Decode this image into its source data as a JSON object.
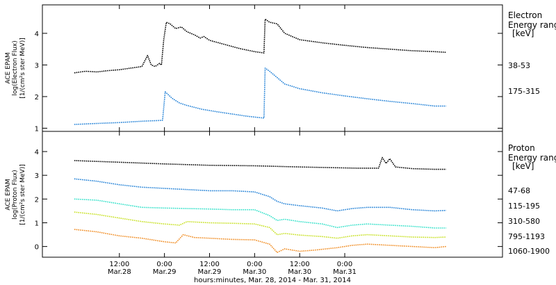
{
  "chart_data": [
    {
      "type": "line",
      "panel": "electron",
      "ylabel_lines": [
        "ACE EPAM",
        "log(Electron Flux)",
        "[1/(cm²s ster MeV)]"
      ],
      "ylim": [
        0.9,
        4.9
      ],
      "yticks": [
        1,
        2,
        3,
        4
      ],
      "legend_title_lines": [
        "Electron",
        "Energy ranges",
        "[keV]"
      ],
      "series": [
        {
          "name": "38-53",
          "color": "#000000",
          "points": [
            [
              0,
              2.75
            ],
            [
              3,
              2.8
            ],
            [
              6,
              2.78
            ],
            [
              9,
              2.82
            ],
            [
              12,
              2.85
            ],
            [
              15,
              2.9
            ],
            [
              18,
              2.95
            ],
            [
              19.5,
              3.3
            ],
            [
              20.5,
              3.0
            ],
            [
              21.5,
              2.95
            ],
            [
              22.7,
              3.05
            ],
            [
              23.2,
              3.0
            ],
            [
              23.8,
              3.8
            ],
            [
              24.5,
              4.35
            ],
            [
              25.5,
              4.3
            ],
            [
              27,
              4.15
            ],
            [
              28.5,
              4.2
            ],
            [
              30,
              4.05
            ],
            [
              31,
              4.0
            ],
            [
              32,
              3.95
            ],
            [
              33.5,
              3.85
            ],
            [
              34.5,
              3.9
            ],
            [
              36,
              3.78
            ],
            [
              40,
              3.65
            ],
            [
              44,
              3.52
            ],
            [
              48,
              3.42
            ],
            [
              50.5,
              3.38
            ],
            [
              50.8,
              4.45
            ],
            [
              52,
              4.35
            ],
            [
              54,
              4.3
            ],
            [
              56,
              4.0
            ],
            [
              60,
              3.8
            ],
            [
              66,
              3.7
            ],
            [
              72,
              3.62
            ],
            [
              78,
              3.55
            ],
            [
              84,
              3.5
            ],
            [
              90,
              3.45
            ],
            [
              96,
              3.42
            ],
            [
              99,
              3.4
            ]
          ]
        },
        {
          "name": "175-315",
          "color": "#1e7fd6",
          "points": [
            [
              0,
              1.12
            ],
            [
              6,
              1.15
            ],
            [
              12,
              1.18
            ],
            [
              18,
              1.22
            ],
            [
              23.5,
              1.25
            ],
            [
              24.2,
              2.15
            ],
            [
              26,
              1.95
            ],
            [
              28,
              1.8
            ],
            [
              30,
              1.72
            ],
            [
              34,
              1.6
            ],
            [
              38,
              1.52
            ],
            [
              42,
              1.45
            ],
            [
              46,
              1.38
            ],
            [
              50.5,
              1.32
            ],
            [
              50.8,
              2.9
            ],
            [
              52,
              2.8
            ],
            [
              54,
              2.6
            ],
            [
              56,
              2.4
            ],
            [
              60,
              2.25
            ],
            [
              66,
              2.12
            ],
            [
              72,
              2.02
            ],
            [
              78,
              1.93
            ],
            [
              84,
              1.85
            ],
            [
              90,
              1.78
            ],
            [
              96,
              1.7
            ],
            [
              99,
              1.7
            ]
          ]
        }
      ]
    },
    {
      "type": "line",
      "panel": "proton",
      "ylabel_lines": [
        "ACE EPAM",
        "log(Proton Flux)",
        "[1/(cm²s ster MeV)]"
      ],
      "ylim": [
        -0.45,
        4.85
      ],
      "yticks": [
        0,
        1,
        2,
        3,
        4
      ],
      "legend_title_lines": [
        "Proton",
        "Energy ranges",
        "[keV]"
      ],
      "series": [
        {
          "name": "47-68",
          "color": "#000000",
          "points": [
            [
              0,
              3.62
            ],
            [
              12,
              3.55
            ],
            [
              24,
              3.48
            ],
            [
              36,
              3.42
            ],
            [
              48,
              3.4
            ],
            [
              60,
              3.35
            ],
            [
              75,
              3.3
            ],
            [
              81,
              3.3
            ],
            [
              82,
              3.75
            ],
            [
              83,
              3.5
            ],
            [
              84,
              3.7
            ],
            [
              85.5,
              3.35
            ],
            [
              90,
              3.28
            ],
            [
              96,
              3.25
            ],
            [
              99,
              3.25
            ]
          ]
        },
        {
          "name": "115-195",
          "color": "#1e7fd6",
          "points": [
            [
              0,
              2.85
            ],
            [
              6,
              2.75
            ],
            [
              12,
              2.6
            ],
            [
              18,
              2.5
            ],
            [
              24,
              2.45
            ],
            [
              30,
              2.4
            ],
            [
              36,
              2.35
            ],
            [
              42,
              2.35
            ],
            [
              48,
              2.3
            ],
            [
              52,
              2.1
            ],
            [
              54,
              1.9
            ],
            [
              56,
              1.8
            ],
            [
              60,
              1.72
            ],
            [
              66,
              1.62
            ],
            [
              70,
              1.5
            ],
            [
              74,
              1.6
            ],
            [
              78,
              1.65
            ],
            [
              84,
              1.65
            ],
            [
              90,
              1.55
            ],
            [
              96,
              1.5
            ],
            [
              99,
              1.52
            ]
          ]
        },
        {
          "name": "310-580",
          "color": "#2ee0c8",
          "points": [
            [
              0,
              2.0
            ],
            [
              6,
              1.95
            ],
            [
              12,
              1.8
            ],
            [
              18,
              1.65
            ],
            [
              24,
              1.62
            ],
            [
              30,
              1.6
            ],
            [
              36,
              1.58
            ],
            [
              42,
              1.55
            ],
            [
              48,
              1.55
            ],
            [
              52,
              1.3
            ],
            [
              54,
              1.1
            ],
            [
              56,
              1.15
            ],
            [
              60,
              1.05
            ],
            [
              66,
              0.95
            ],
            [
              70,
              0.8
            ],
            [
              74,
              0.9
            ],
            [
              78,
              0.95
            ],
            [
              84,
              0.9
            ],
            [
              90,
              0.85
            ],
            [
              96,
              0.78
            ],
            [
              99,
              0.78
            ]
          ]
        },
        {
          "name": "795-1193",
          "color": "#c6e01e",
          "points": [
            [
              0,
              1.45
            ],
            [
              6,
              1.35
            ],
            [
              12,
              1.2
            ],
            [
              18,
              1.05
            ],
            [
              24,
              0.95
            ],
            [
              28,
              0.9
            ],
            [
              30,
              1.05
            ],
            [
              36,
              1.0
            ],
            [
              42,
              0.98
            ],
            [
              48,
              0.95
            ],
            [
              52,
              0.8
            ],
            [
              54,
              0.5
            ],
            [
              56,
              0.55
            ],
            [
              60,
              0.48
            ],
            [
              66,
              0.42
            ],
            [
              70,
              0.35
            ],
            [
              74,
              0.45
            ],
            [
              78,
              0.5
            ],
            [
              84,
              0.45
            ],
            [
              90,
              0.4
            ],
            [
              96,
              0.38
            ],
            [
              99,
              0.4
            ]
          ]
        },
        {
          "name": "1060-1900",
          "color": "#f08a1e",
          "points": [
            [
              0,
              0.72
            ],
            [
              6,
              0.62
            ],
            [
              12,
              0.45
            ],
            [
              18,
              0.35
            ],
            [
              24,
              0.2
            ],
            [
              27,
              0.15
            ],
            [
              29,
              0.5
            ],
            [
              32,
              0.38
            ],
            [
              36,
              0.35
            ],
            [
              42,
              0.3
            ],
            [
              48,
              0.28
            ],
            [
              52,
              0.1
            ],
            [
              54,
              -0.25
            ],
            [
              56,
              -0.1
            ],
            [
              60,
              -0.2
            ],
            [
              64,
              -0.15
            ],
            [
              70,
              -0.05
            ],
            [
              74,
              0.05
            ],
            [
              78,
              0.1
            ],
            [
              84,
              0.05
            ],
            [
              90,
              0.0
            ],
            [
              96,
              -0.05
            ],
            [
              99,
              0.0
            ]
          ]
        }
      ]
    }
  ],
  "x_axis": {
    "min": -8.5,
    "max": 114,
    "ticks": [
      {
        "x": 12,
        "time": "12:00",
        "date": "Mar.28"
      },
      {
        "x": 24,
        "time": "0:00",
        "date": "Mar.29"
      },
      {
        "x": 36,
        "time": "12:00",
        "date": "Mar.29"
      },
      {
        "x": 48,
        "time": "0:00",
        "date": "Mar.30"
      },
      {
        "x": 60,
        "time": "12:00",
        "date": "Mar.30"
      },
      {
        "x": 72,
        "time": "0:00",
        "date": "Mar.31"
      }
    ],
    "xlabel": "hours:minutes, Mar. 28, 2014 - Mar. 31, 2014"
  }
}
